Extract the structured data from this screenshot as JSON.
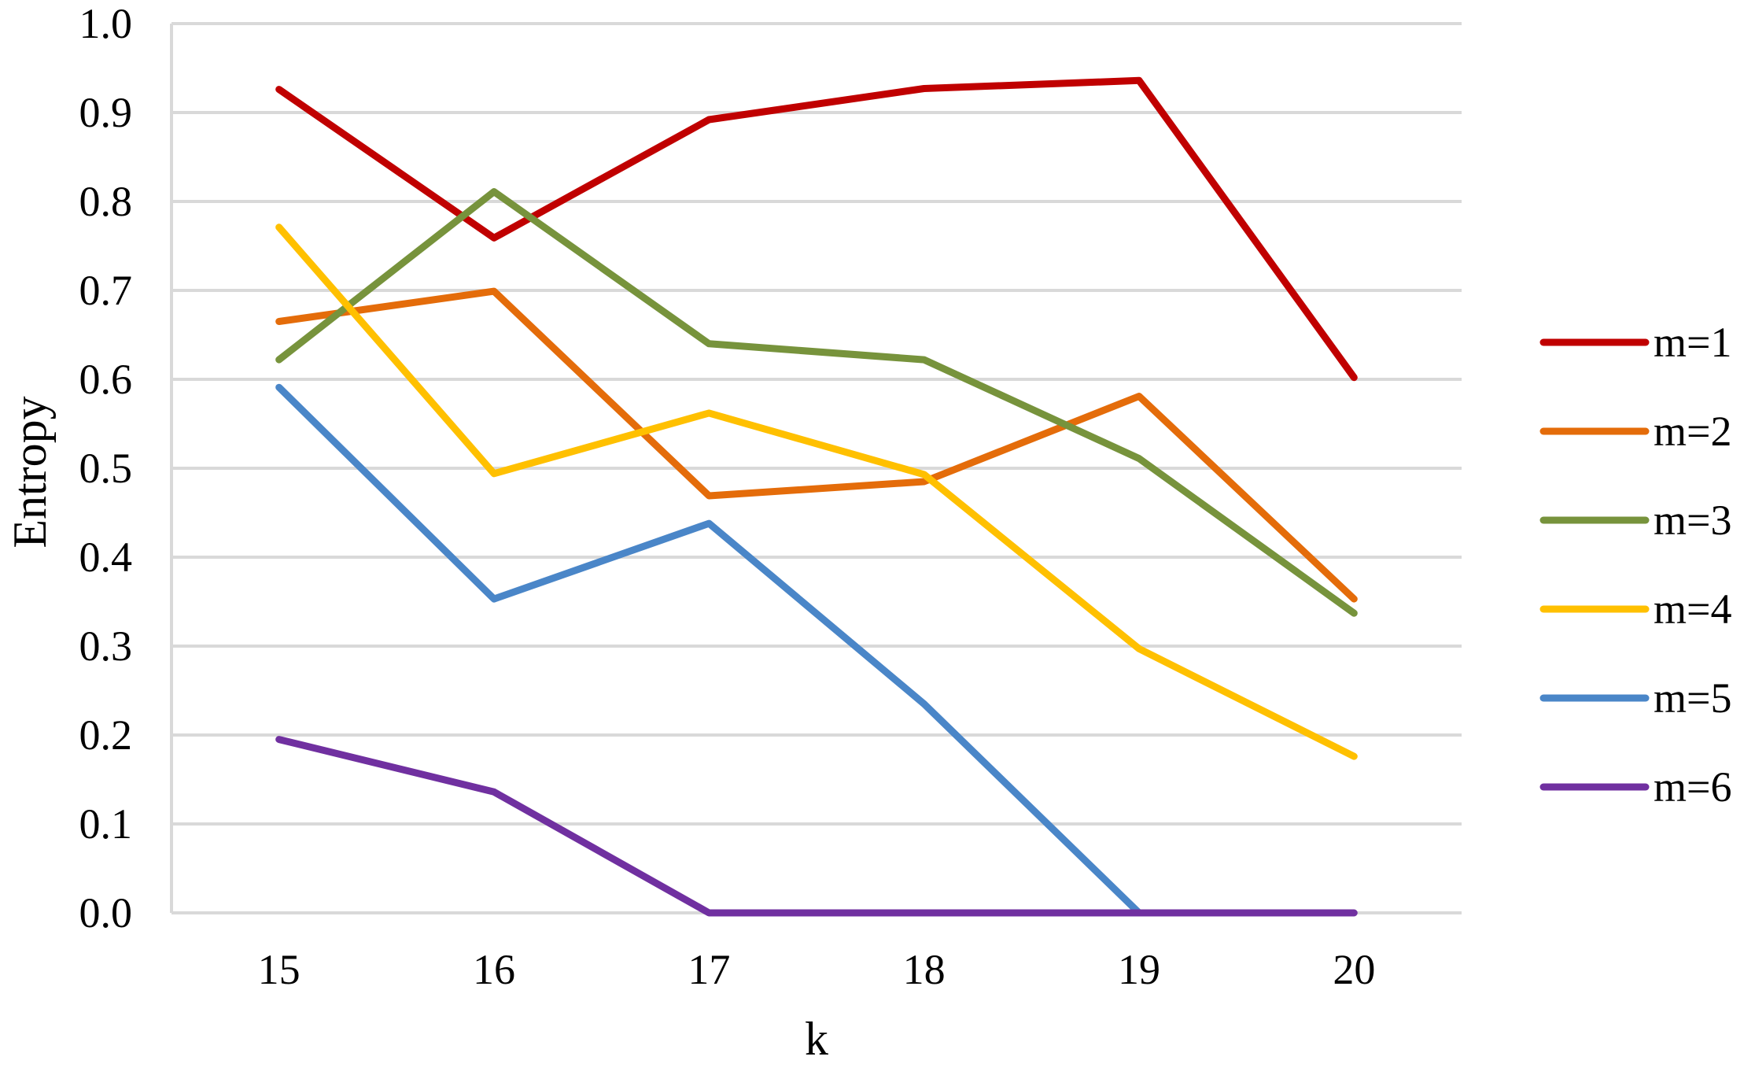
{
  "chart_data": {
    "type": "line",
    "xlabel": "k",
    "ylabel": "Entropy",
    "categories": [
      "15",
      "16",
      "17",
      "18",
      "19",
      "20"
    ],
    "ylim": [
      0,
      1
    ],
    "yticks": [
      "0.0",
      "0.1",
      "0.2",
      "0.3",
      "0.4",
      "0.5",
      "0.6",
      "0.7",
      "0.8",
      "0.9",
      "1.0"
    ],
    "grid": true,
    "legend_position": "right",
    "series": [
      {
        "name": "m=1",
        "color": "#c00000",
        "values": [
          0.926,
          0.759,
          0.892,
          0.927,
          0.936,
          0.602
        ]
      },
      {
        "name": "m=2",
        "color": "#e46c0a",
        "values": [
          0.665,
          0.699,
          0.469,
          0.485,
          0.581,
          0.353
        ]
      },
      {
        "name": "m=3",
        "color": "#77933c",
        "values": [
          0.622,
          0.811,
          0.64,
          0.622,
          0.511,
          0.337
        ]
      },
      {
        "name": "m=4",
        "color": "#ffc000",
        "values": [
          0.771,
          0.494,
          0.562,
          0.493,
          0.297,
          0.176
        ]
      },
      {
        "name": "m=5",
        "color": "#4a86c8",
        "values": [
          0.591,
          0.353,
          0.438,
          0.235,
          0.0,
          null
        ]
      },
      {
        "name": "m=6",
        "color": "#7030a0",
        "values": [
          0.195,
          0.136,
          0.0,
          0.0,
          0.0,
          0.0
        ]
      }
    ]
  }
}
